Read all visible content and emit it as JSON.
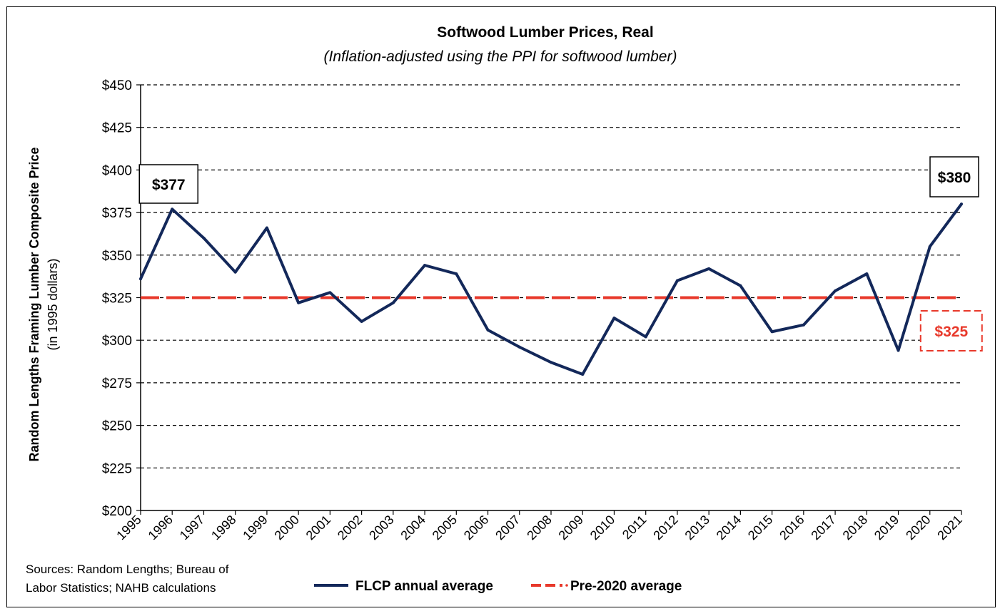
{
  "chart_data": {
    "type": "line",
    "title": "Softwood Lumber Prices, Real",
    "subtitle": "(Inflation-adjusted using the PPI for softwood lumber)",
    "ylabel": "Random Lengths Framing Lumber Composite Price",
    "ylabel_sub": "(in 1995 dollars)",
    "xlabel": "",
    "ylim": [
      200,
      450
    ],
    "yticks": [
      200,
      225,
      250,
      275,
      300,
      325,
      350,
      375,
      400,
      425,
      450
    ],
    "ytick_labels": [
      "$200",
      "$225",
      "$250",
      "$275",
      "$300",
      "$325",
      "$350",
      "$375",
      "$400",
      "$425",
      "$450"
    ],
    "grid": "horizontal dashed",
    "legend_position": "bottom",
    "categories": [
      "1995",
      "1996",
      "1997",
      "1998",
      "1999",
      "2000",
      "2001",
      "2002",
      "2003",
      "2004",
      "2005",
      "2006",
      "2007",
      "2008",
      "2009",
      "2010",
      "2011",
      "2012",
      "2013",
      "2014",
      "2015",
      "2016",
      "2017",
      "2018",
      "2019",
      "2020",
      "2021"
    ],
    "series": [
      {
        "name": "FLCP annual average",
        "color": "#13285a",
        "style": "solid",
        "values": [
          336,
          377,
          360,
          340,
          366,
          322,
          328,
          311,
          322,
          344,
          339,
          306,
          296,
          287,
          280,
          313,
          302,
          335,
          342,
          332,
          305,
          309,
          329,
          339,
          294,
          355,
          380
        ]
      },
      {
        "name": "Pre-2020 average",
        "color": "#e8392b",
        "style": "dashed",
        "values": [
          325,
          325,
          325,
          325,
          325,
          325,
          325,
          325,
          325,
          325,
          325,
          325,
          325,
          325,
          325,
          325,
          325,
          325,
          325,
          325,
          325,
          325,
          325,
          325,
          325,
          325,
          325
        ]
      }
    ],
    "annotations": [
      {
        "text": "$377",
        "category": "1996",
        "value": 377,
        "style": "box"
      },
      {
        "text": "$380",
        "category": "2021",
        "value": 380,
        "style": "box"
      },
      {
        "text": "$325",
        "category": "2021",
        "value": 325,
        "style": "dashed-red-box"
      }
    ]
  },
  "source_lines": [
    "Sources: Random Lengths; Bureau of",
    "Labor Statistics; NAHB calculations"
  ]
}
